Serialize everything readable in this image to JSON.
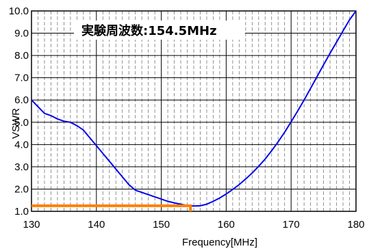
{
  "chart_data": {
    "type": "line",
    "xlabel": "Frequency[MHz]",
    "ylabel": "VSWR",
    "xlim": [
      130,
      180
    ],
    "ylim": [
      1.0,
      10.0
    ],
    "x_major_ticks": [
      "130",
      "140",
      "150",
      "160",
      "170",
      "180"
    ],
    "y_major_ticks": [
      "1.0",
      "2.0",
      "3.0",
      "4.0",
      "5.0",
      "6.0",
      "7.0",
      "8.0",
      "9.0",
      "10.0"
    ],
    "x_minor_step": 1,
    "grid": "dashed gridlines every 1 MHz, solid gridlines every 10 MHz and every 1.0 VSWR",
    "annotation": "実験周波数:154.5MHz",
    "series": [
      {
        "color": "#0000ee",
        "points": [
          [
            130,
            6.0
          ],
          [
            131,
            5.7
          ],
          [
            132,
            5.4
          ],
          [
            133,
            5.3
          ],
          [
            134,
            5.15
          ],
          [
            135,
            5.05
          ],
          [
            136,
            5.0
          ],
          [
            137,
            4.85
          ],
          [
            138,
            4.65
          ],
          [
            139,
            4.3
          ],
          [
            140,
            3.95
          ],
          [
            141,
            3.6
          ],
          [
            142,
            3.25
          ],
          [
            143,
            2.9
          ],
          [
            144,
            2.55
          ],
          [
            145,
            2.2
          ],
          [
            146,
            1.95
          ],
          [
            147,
            1.85
          ],
          [
            148,
            1.75
          ],
          [
            149,
            1.65
          ],
          [
            150,
            1.55
          ],
          [
            151,
            1.45
          ],
          [
            152,
            1.38
          ],
          [
            153,
            1.32
          ],
          [
            154,
            1.26
          ],
          [
            155,
            1.24
          ],
          [
            156,
            1.25
          ],
          [
            157,
            1.32
          ],
          [
            158,
            1.45
          ],
          [
            159,
            1.6
          ],
          [
            160,
            1.78
          ],
          [
            161,
            1.98
          ],
          [
            162,
            2.2
          ],
          [
            163,
            2.45
          ],
          [
            164,
            2.72
          ],
          [
            165,
            3.02
          ],
          [
            166,
            3.35
          ],
          [
            167,
            3.72
          ],
          [
            168,
            4.12
          ],
          [
            169,
            4.55
          ],
          [
            170,
            5.02
          ],
          [
            171,
            5.5
          ],
          [
            172,
            6.0
          ],
          [
            173,
            6.52
          ],
          [
            174,
            7.05
          ],
          [
            175,
            7.58
          ],
          [
            176,
            8.1
          ],
          [
            177,
            8.6
          ],
          [
            178,
            9.1
          ],
          [
            179,
            9.6
          ],
          [
            180,
            10.0
          ]
        ]
      }
    ],
    "marker": {
      "color": "#ff8000",
      "frequency": 154.5,
      "vswr": 1.25,
      "description": "horizontal line from y-axis at VSWR 1.25 to 154.5 MHz, then vertical drop to bottom axis"
    }
  }
}
